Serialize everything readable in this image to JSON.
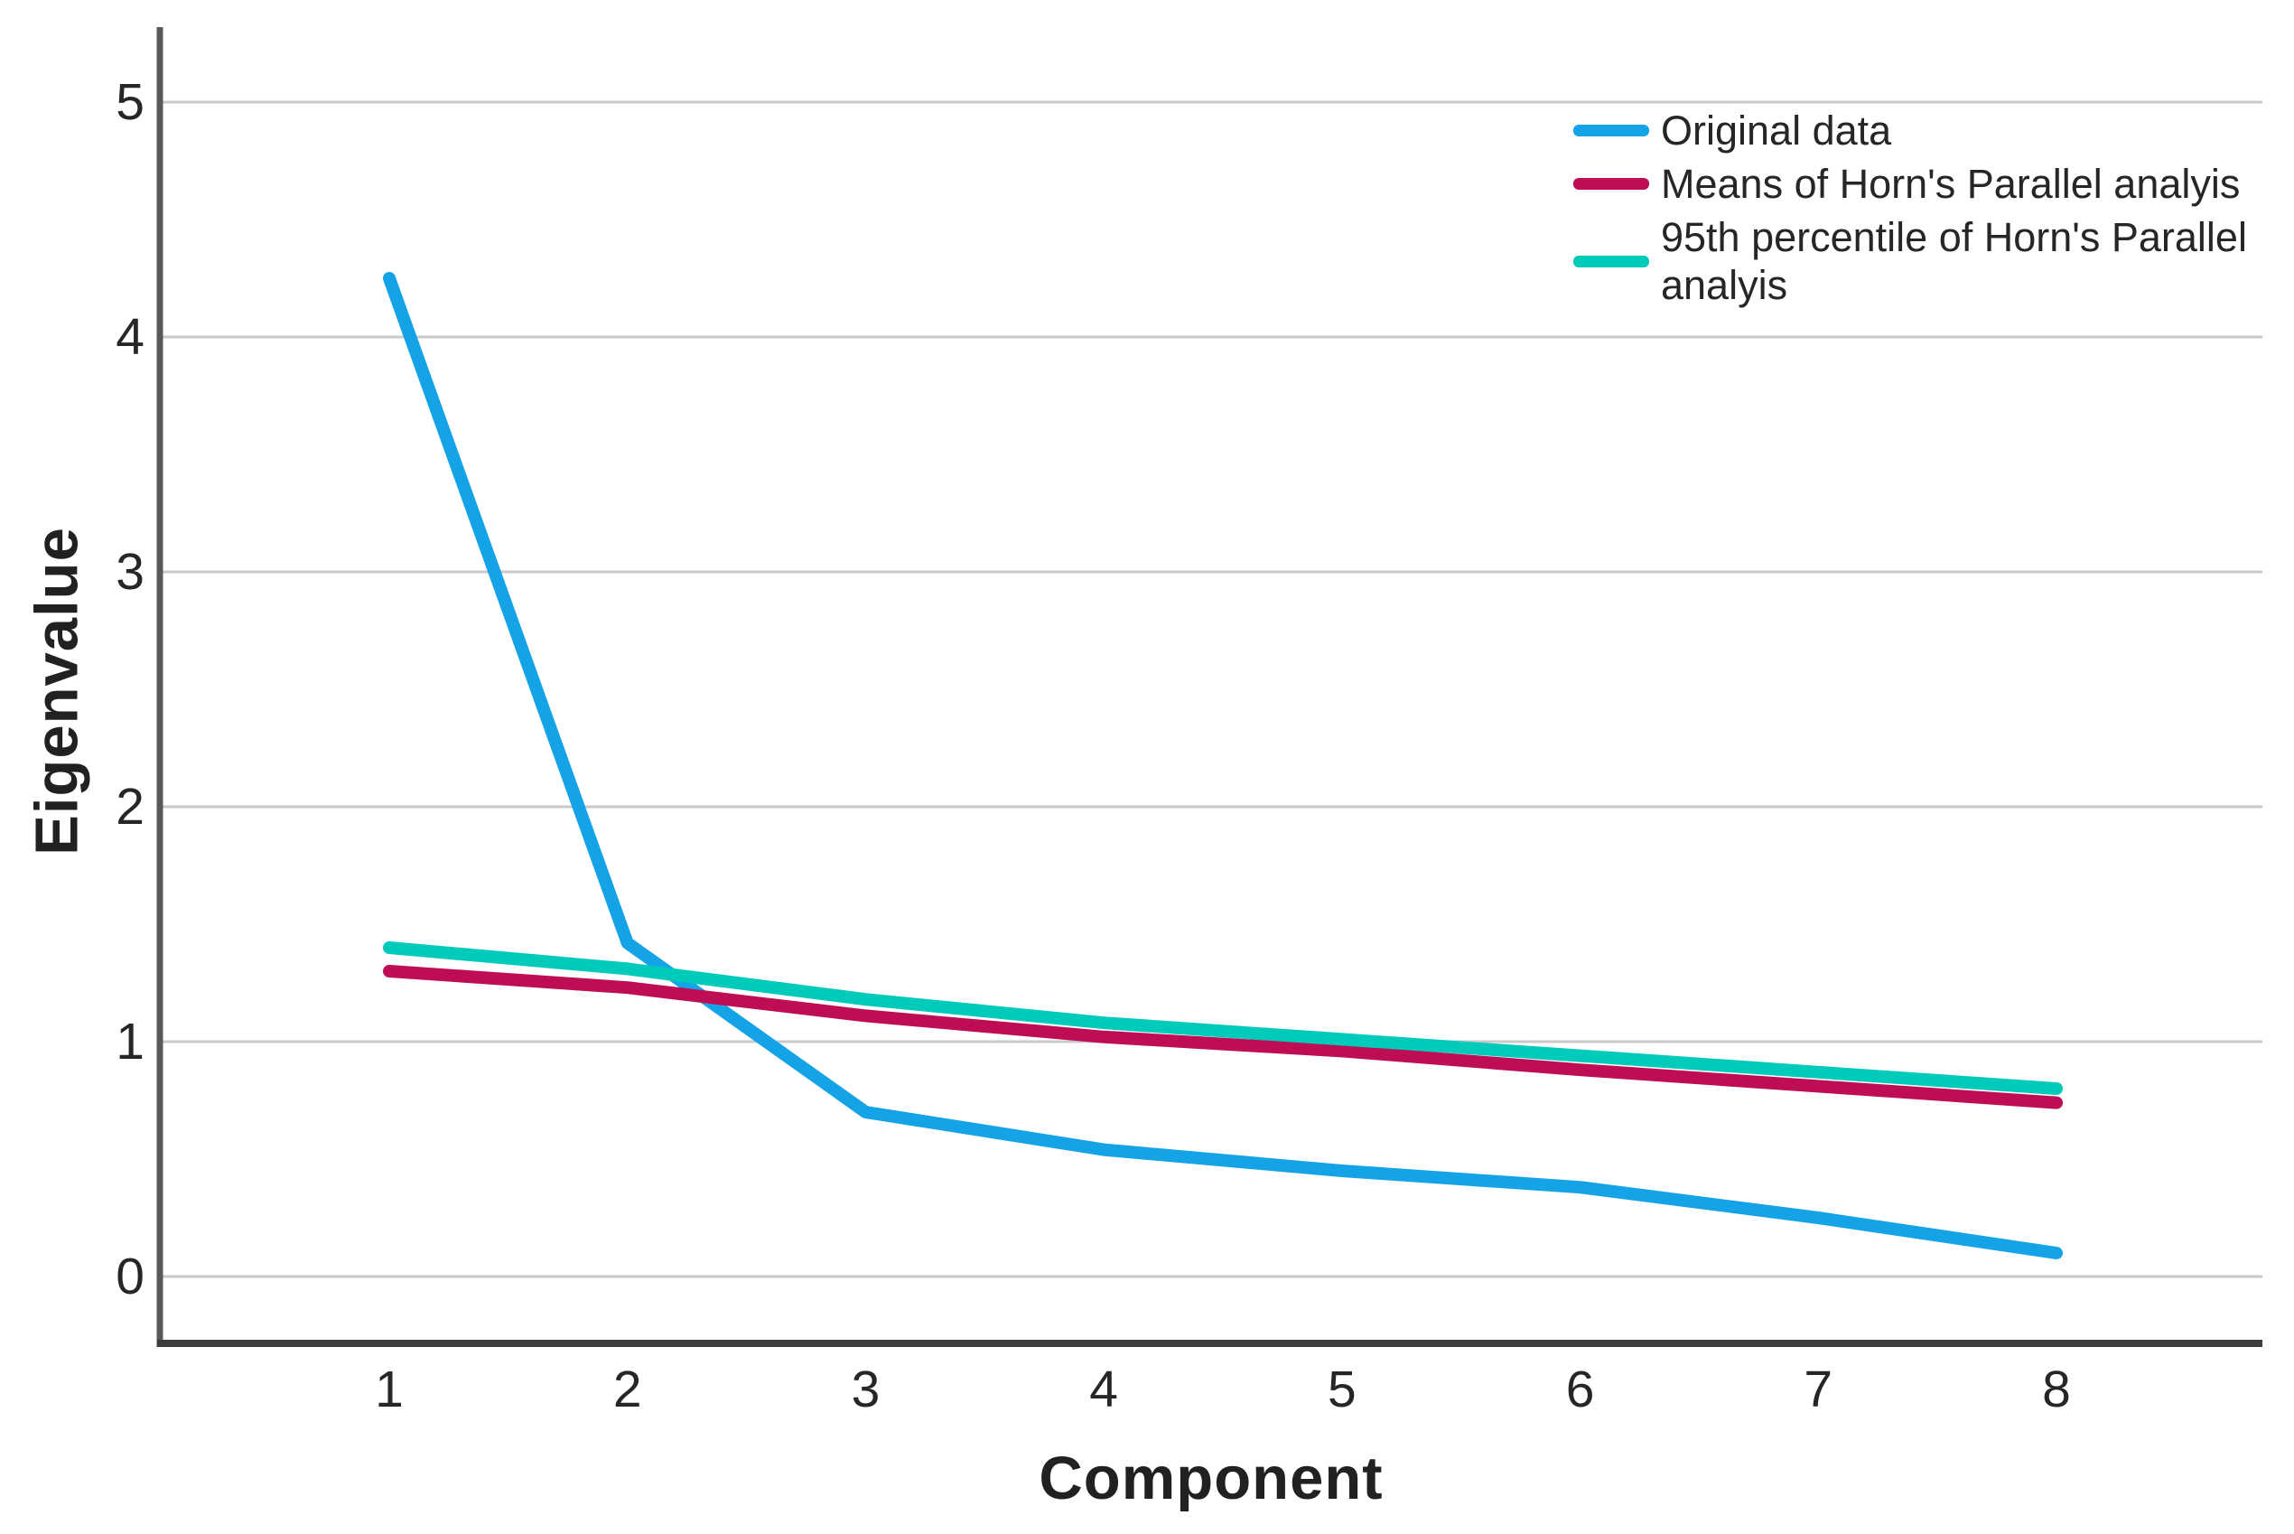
{
  "chart_data": {
    "type": "line",
    "title": "",
    "xlabel": "Component",
    "ylabel": "Eigenvalue",
    "x": [
      1,
      2,
      3,
      4,
      5,
      6,
      7,
      8
    ],
    "x_tick_labels": [
      "1",
      "2",
      "3",
      "4",
      "5",
      "6",
      "7",
      "8"
    ],
    "y_ticks": [
      0,
      1,
      2,
      3,
      4,
      5
    ],
    "ylim": [
      0,
      5.3
    ],
    "xlim": [
      0.05,
      8.85
    ],
    "grid": "horizontal-only",
    "grid_color": "#C9C9C9",
    "axis_color_y": "#595959",
    "axis_color_x": "#3D3D3D",
    "legend_position": "top-right-inside",
    "series": [
      {
        "name": "Original data",
        "color": "#14A3E7",
        "values": [
          4.25,
          1.42,
          0.7,
          0.54,
          0.45,
          0.38,
          0.25,
          0.1
        ]
      },
      {
        "name": "Means of Horn's Parallel analyis",
        "color": "#BE0D55",
        "values": [
          1.3,
          1.23,
          1.11,
          1.02,
          0.96,
          0.88,
          0.81,
          0.74
        ]
      },
      {
        "name": "95th percentile of Horn's Parallel analyis",
        "color": "#00CAB9",
        "values": [
          1.4,
          1.31,
          1.18,
          1.08,
          1.01,
          0.94,
          0.87,
          0.8
        ]
      }
    ]
  }
}
